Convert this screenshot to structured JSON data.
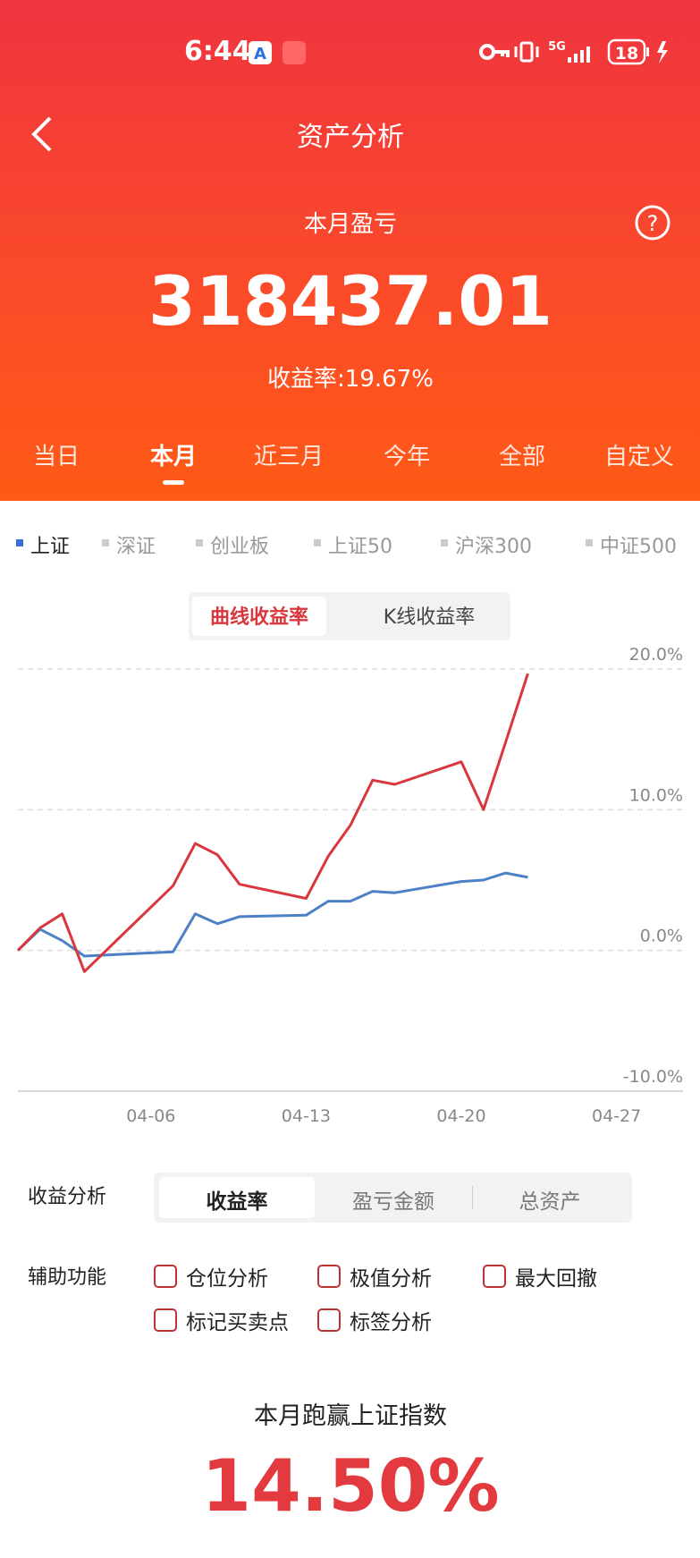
{
  "status_bar": {
    "time": "6:44",
    "network": "5G",
    "battery": "18"
  },
  "header": {
    "title": "资产分析",
    "label": "本月盈亏",
    "amount": "318437.01",
    "return_rate": "收益率:19.67%"
  },
  "period_tabs": {
    "items": [
      "当日",
      "本月",
      "近三月",
      "今年",
      "全部",
      "自定义"
    ],
    "active": 1
  },
  "index_tabs": {
    "items": [
      "上证",
      "深证",
      "创业板",
      "上证50",
      "沪深300",
      "中证500"
    ],
    "active": 0
  },
  "chart_mode": {
    "items": [
      "曲线收益率",
      "K线收益率"
    ],
    "active": 0
  },
  "chart_data": {
    "type": "line",
    "x": [
      "03-31",
      "04-01",
      "04-02",
      "04-03",
      "04-07",
      "04-08",
      "04-09",
      "04-10",
      "04-13",
      "04-14",
      "04-15",
      "04-16",
      "04-17",
      "04-20",
      "04-21",
      "04-22",
      "04-23"
    ],
    "series": [
      {
        "color": "#d9363e",
        "values": [
          0,
          1.6,
          2.6,
          -1.5,
          4.6,
          7.6,
          6.8,
          4.7,
          3.7,
          6.7,
          8.9,
          12.1,
          11.8,
          13.4,
          10.0,
          14.8,
          19.67
        ]
      },
      {
        "color": "#4d80c4",
        "values": [
          0,
          1.5,
          0.7,
          -0.4,
          -0.1,
          2.6,
          1.9,
          2.4,
          2.5,
          3.5,
          3.5,
          4.2,
          4.1,
          4.9,
          5.0,
          5.5,
          5.2
        ]
      }
    ],
    "xlim": [
      "03-31",
      "04-30"
    ],
    "xticks": [
      "04-06",
      "04-13",
      "04-20",
      "04-27"
    ],
    "ylim": [
      -10,
      20
    ],
    "yticks": [
      {
        "value": 20,
        "label": "20.0%"
      },
      {
        "value": 10,
        "label": "10.0%"
      },
      {
        "value": 0,
        "label": "0.0%"
      },
      {
        "value": -10,
        "label": "-10.0%"
      }
    ],
    "grid": true
  },
  "analysis": {
    "label": "收益分析",
    "options": [
      "收益率",
      "盈亏金额",
      "总资产"
    ],
    "active": 0
  },
  "aux": {
    "label": "辅助功能",
    "options": [
      "仓位分析",
      "极值分析",
      "最大回撤",
      "标记买卖点",
      "标签分析"
    ]
  },
  "summary": {
    "label": "本月跑赢上证指数",
    "value": "14.50%"
  }
}
